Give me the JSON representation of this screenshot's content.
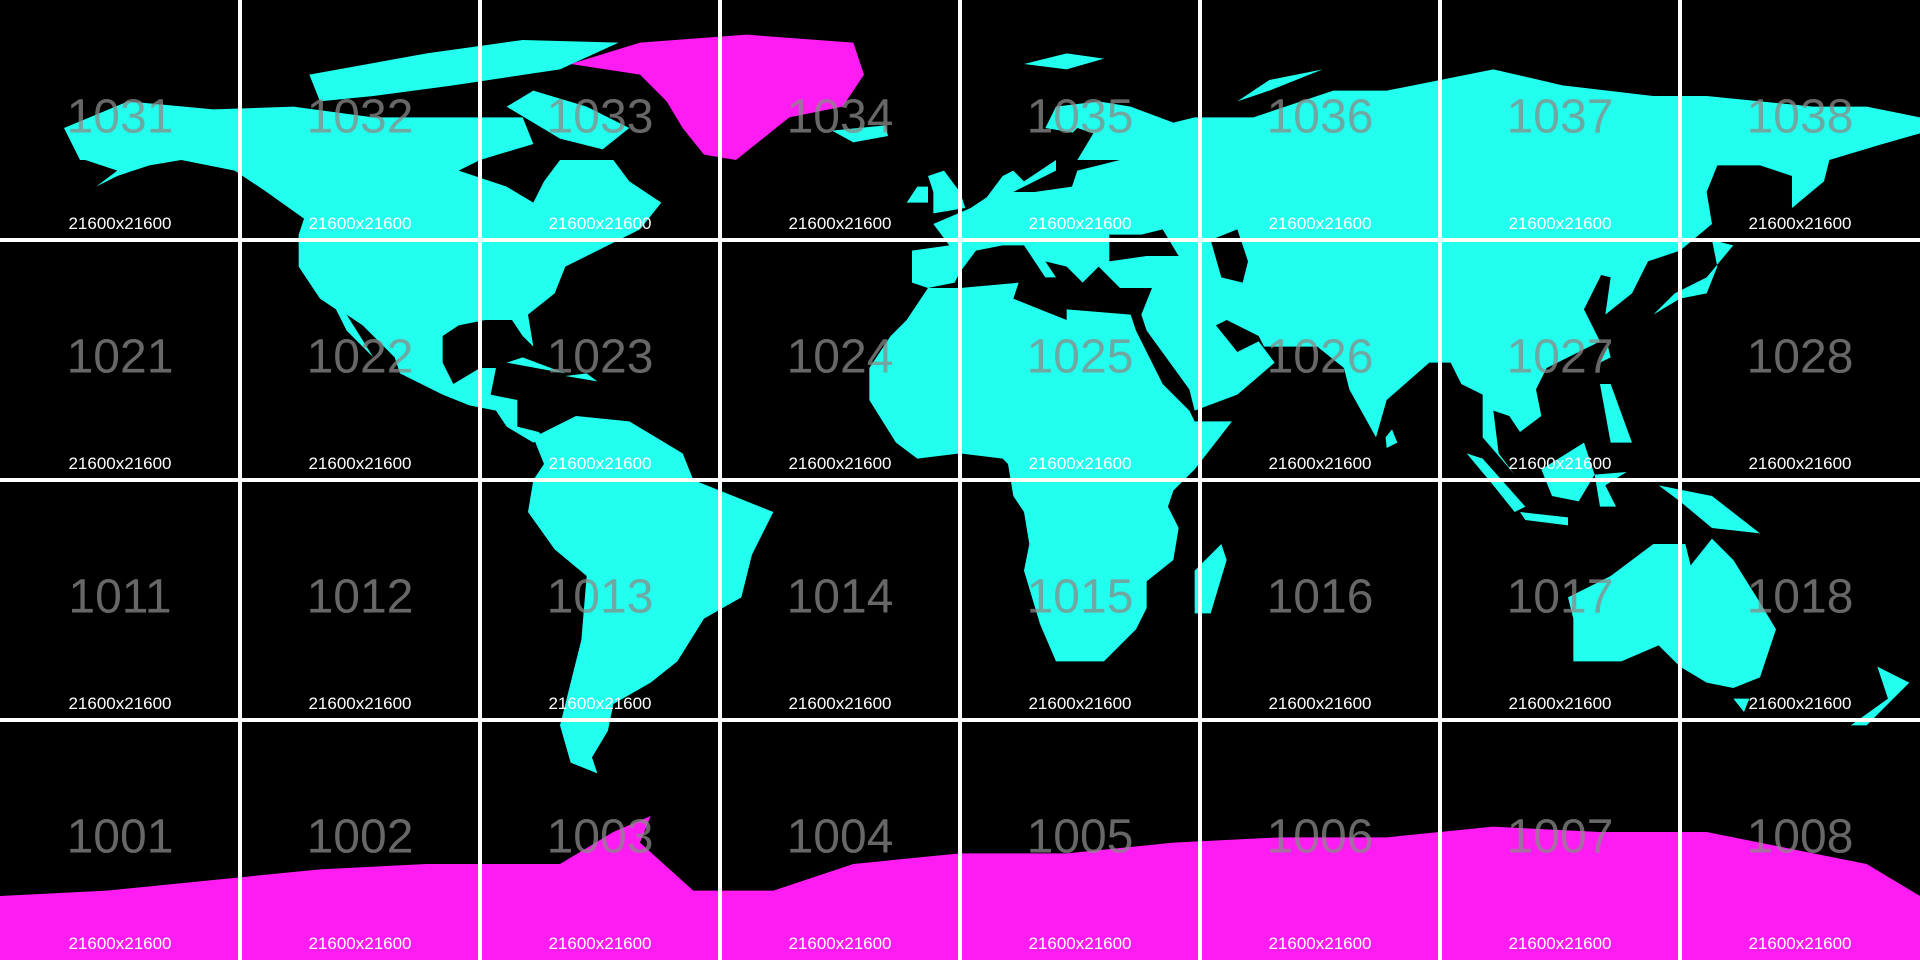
{
  "grid": {
    "rows": [
      {
        "tiles": [
          {
            "id": "1031",
            "size": "21600x21600"
          },
          {
            "id": "1032",
            "size": "21600x21600"
          },
          {
            "id": "1033",
            "size": "21600x21600"
          },
          {
            "id": "1034",
            "size": "21600x21600"
          },
          {
            "id": "1035",
            "size": "21600x21600"
          },
          {
            "id": "1036",
            "size": "21600x21600"
          },
          {
            "id": "1037",
            "size": "21600x21600"
          },
          {
            "id": "1038",
            "size": "21600x21600"
          }
        ]
      },
      {
        "tiles": [
          {
            "id": "1021",
            "size": "21600x21600"
          },
          {
            "id": "1022",
            "size": "21600x21600"
          },
          {
            "id": "1023",
            "size": "21600x21600"
          },
          {
            "id": "1024",
            "size": "21600x21600"
          },
          {
            "id": "1025",
            "size": "21600x21600"
          },
          {
            "id": "1026",
            "size": "21600x21600"
          },
          {
            "id": "1027",
            "size": "21600x21600"
          },
          {
            "id": "1028",
            "size": "21600x21600"
          }
        ]
      },
      {
        "tiles": [
          {
            "id": "1011",
            "size": "21600x21600"
          },
          {
            "id": "1012",
            "size": "21600x21600"
          },
          {
            "id": "1013",
            "size": "21600x21600"
          },
          {
            "id": "1014",
            "size": "21600x21600"
          },
          {
            "id": "1015",
            "size": "21600x21600"
          },
          {
            "id": "1016",
            "size": "21600x21600"
          },
          {
            "id": "1017",
            "size": "21600x21600"
          },
          {
            "id": "1018",
            "size": "21600x21600"
          }
        ]
      },
      {
        "tiles": [
          {
            "id": "1001",
            "size": "21600x21600"
          },
          {
            "id": "1002",
            "size": "21600x21600"
          },
          {
            "id": "1003",
            "size": "21600x21600"
          },
          {
            "id": "1004",
            "size": "21600x21600"
          },
          {
            "id": "1005",
            "size": "21600x21600"
          },
          {
            "id": "1006",
            "size": "21600x21600"
          },
          {
            "id": "1007",
            "size": "21600x21600"
          },
          {
            "id": "1008",
            "size": "21600x21600"
          }
        ]
      }
    ]
  }
}
